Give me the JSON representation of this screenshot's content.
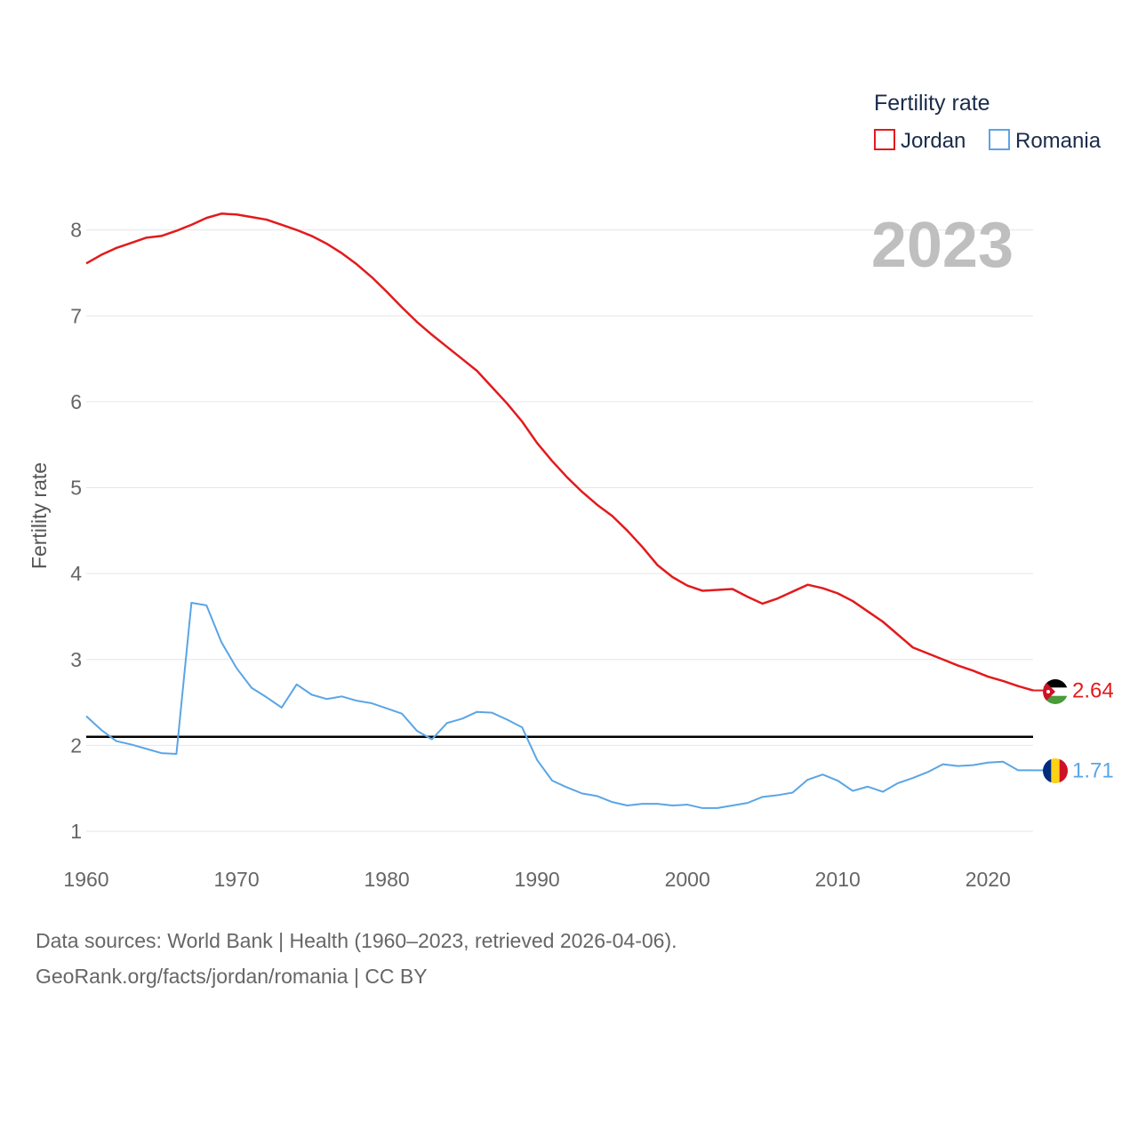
{
  "chart_data": {
    "type": "line",
    "year_label": "2023",
    "ylabel": "Fertility rate",
    "xlabel": "",
    "xlim": [
      1960,
      2023
    ],
    "ylim": [
      0.7,
      8.4
    ],
    "xticks": [
      "1960",
      "1970",
      "1980",
      "1990",
      "2000",
      "2010",
      "2020"
    ],
    "yticks": [
      "1",
      "2",
      "3",
      "4",
      "5",
      "6",
      "7",
      "8"
    ],
    "legend": {
      "title": "Fertility rate",
      "position": "top-right"
    },
    "reference_line": {
      "value": 2.1,
      "color": "#000000"
    },
    "series": [
      {
        "name": "Jordan",
        "color": "#e31a1c",
        "end_label": "2.64",
        "years": [
          1960,
          1961,
          1962,
          1963,
          1964,
          1965,
          1966,
          1967,
          1968,
          1969,
          1970,
          1971,
          1972,
          1973,
          1974,
          1975,
          1976,
          1977,
          1978,
          1979,
          1980,
          1981,
          1982,
          1983,
          1984,
          1985,
          1986,
          1987,
          1988,
          1989,
          1990,
          1991,
          1992,
          1993,
          1994,
          1995,
          1996,
          1997,
          1998,
          1999,
          2000,
          2001,
          2002,
          2003,
          2004,
          2005,
          2006,
          2007,
          2008,
          2009,
          2010,
          2011,
          2012,
          2013,
          2014,
          2015,
          2016,
          2017,
          2018,
          2019,
          2020,
          2021,
          2022,
          2023
        ],
        "values": [
          7.61,
          7.71,
          7.79,
          7.85,
          7.91,
          7.93,
          7.99,
          8.06,
          8.14,
          8.19,
          8.18,
          8.15,
          8.12,
          8.06,
          8.0,
          7.93,
          7.84,
          7.73,
          7.6,
          7.45,
          7.28,
          7.1,
          6.93,
          6.78,
          6.64,
          6.5,
          6.36,
          6.17,
          5.98,
          5.77,
          5.52,
          5.31,
          5.12,
          4.95,
          4.8,
          4.67,
          4.5,
          4.31,
          4.1,
          3.96,
          3.86,
          3.8,
          3.81,
          3.82,
          3.73,
          3.65,
          3.71,
          3.79,
          3.87,
          3.83,
          3.77,
          3.68,
          3.56,
          3.44,
          3.29,
          3.14,
          3.07,
          3.0,
          2.93,
          2.87,
          2.8,
          2.75,
          2.69,
          2.64
        ]
      },
      {
        "name": "Romania",
        "color": "#5aa5e6",
        "end_label": "1.71",
        "years": [
          1960,
          1961,
          1962,
          1963,
          1964,
          1965,
          1966,
          1967,
          1968,
          1969,
          1970,
          1971,
          1972,
          1973,
          1974,
          1975,
          1976,
          1977,
          1978,
          1979,
          1980,
          1981,
          1982,
          1983,
          1984,
          1985,
          1986,
          1987,
          1988,
          1989,
          1990,
          1991,
          1992,
          1993,
          1994,
          1995,
          1996,
          1997,
          1998,
          1999,
          2000,
          2001,
          2002,
          2003,
          2004,
          2005,
          2006,
          2007,
          2008,
          2009,
          2010,
          2011,
          2012,
          2013,
          2014,
          2015,
          2016,
          2017,
          2018,
          2019,
          2020,
          2021,
          2022,
          2023
        ],
        "values": [
          2.34,
          2.18,
          2.05,
          2.01,
          1.96,
          1.91,
          1.9,
          3.66,
          3.63,
          3.2,
          2.9,
          2.67,
          2.56,
          2.44,
          2.71,
          2.59,
          2.54,
          2.57,
          2.52,
          2.49,
          2.43,
          2.37,
          2.17,
          2.07,
          2.26,
          2.31,
          2.39,
          2.38,
          2.3,
          2.21,
          1.83,
          1.59,
          1.51,
          1.44,
          1.41,
          1.34,
          1.3,
          1.32,
          1.32,
          1.3,
          1.31,
          1.27,
          1.27,
          1.3,
          1.33,
          1.4,
          1.42,
          1.45,
          1.6,
          1.66,
          1.59,
          1.47,
          1.52,
          1.46,
          1.56,
          1.62,
          1.69,
          1.78,
          1.76,
          1.77,
          1.8,
          1.81,
          1.71,
          1.71
        ]
      }
    ]
  },
  "footer": {
    "sources": "Data sources: World Bank | Health (1960–2023, retrieved 2026-04-06).",
    "url": "GeoRank.org/facts/jordan/romania | CC BY"
  }
}
